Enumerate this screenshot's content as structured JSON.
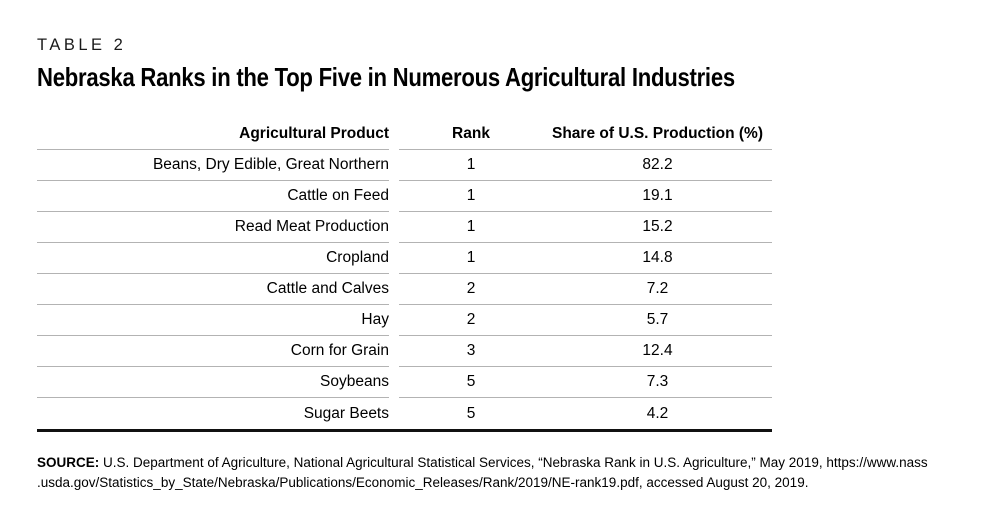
{
  "page": {
    "table_label": "TABLE 2",
    "title": "Nebraska Ranks in the Top Five in Numerous Agricultural Industries"
  },
  "table": {
    "columns": {
      "product": "Agricultural Product",
      "rank": "Rank",
      "share": "Share of U.S. Production (%)"
    },
    "rows": [
      {
        "product": "Beans, Dry Edible, Great Northern",
        "rank": "1",
        "share": "82.2"
      },
      {
        "product": "Cattle on Feed",
        "rank": "1",
        "share": "19.1"
      },
      {
        "product": "Read Meat Production",
        "rank": "1",
        "share": "15.2"
      },
      {
        "product": "Cropland",
        "rank": "1",
        "share": "14.8"
      },
      {
        "product": "Cattle and Calves",
        "rank": "2",
        "share": "7.2"
      },
      {
        "product": "Hay",
        "rank": "2",
        "share": "5.7"
      },
      {
        "product": "Corn for Grain",
        "rank": "3",
        "share": "12.4"
      },
      {
        "product": "Soybeans",
        "rank": "5",
        "share": "7.3"
      },
      {
        "product": "Sugar Beets",
        "rank": "5",
        "share": "4.2"
      }
    ]
  },
  "source": {
    "label": "SOURCE:",
    "line1": "U.S. Department of Agriculture, National Agricultural Statistical Services, “Nebraska Rank in U.S. Agriculture,” May 2019, https://www.nass",
    "line2": ".usda.gov/Statistics_by_State/Nebraska/Publications/Economic_Releases/Rank/2019/NE-rank19.pdf, accessed August 20, 2019."
  },
  "colors": {
    "rule_gray": "#b3b3b3",
    "rule_black": "#111111",
    "text": "#000000"
  }
}
